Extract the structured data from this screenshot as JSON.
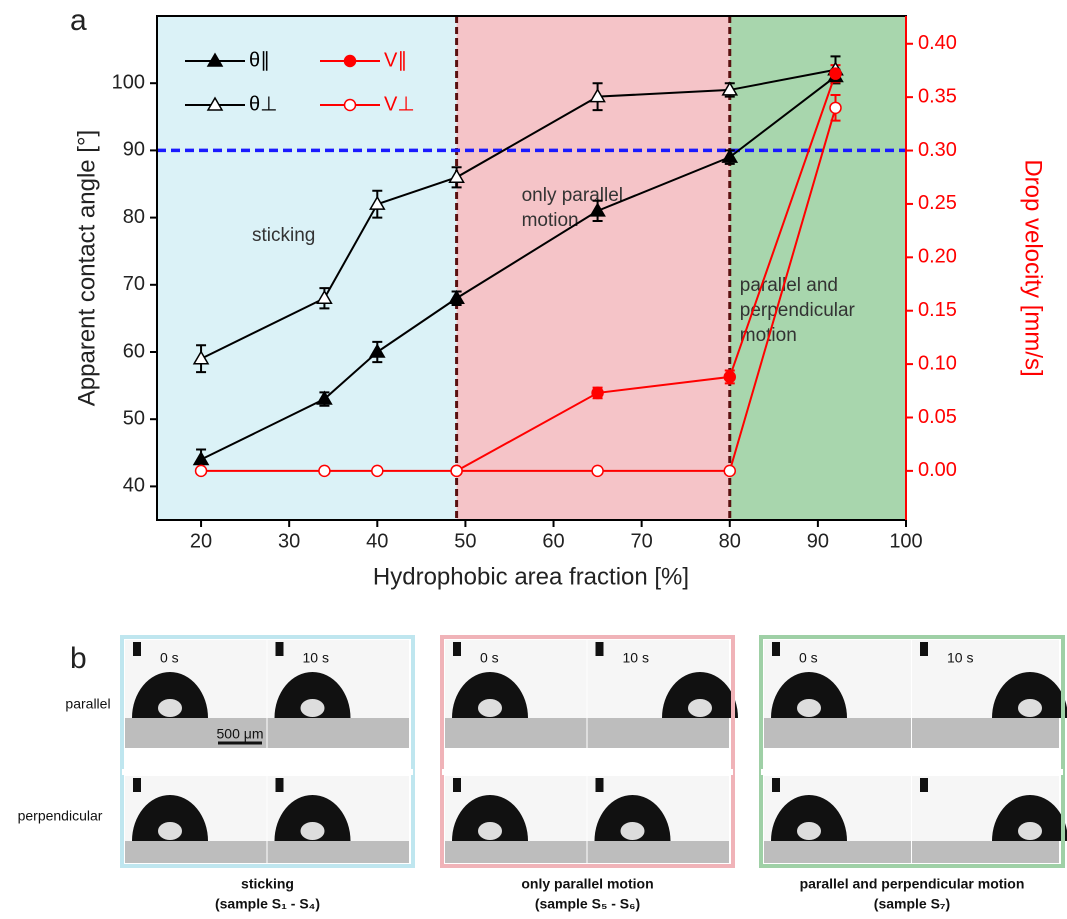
{
  "chart_data": {
    "type": "line",
    "panel": "a",
    "x_label": "Hydrophobic area fraction [%]",
    "y_label": "Apparent contact angle [°]",
    "y2_label": "Drop velocity [mm/s]",
    "xlim": [
      15,
      100
    ],
    "xticks": [
      20,
      30,
      40,
      50,
      60,
      70,
      80,
      90,
      100
    ],
    "ylim": [
      35,
      110
    ],
    "yticks": [
      40,
      50,
      60,
      70,
      80,
      90,
      100
    ],
    "y2lim": [
      -0.046,
      0.426
    ],
    "y2ticks": [
      {
        "value": 0,
        "label": "0.00"
      },
      {
        "value": 0.05,
        "label": "0.05"
      },
      {
        "value": 0.1,
        "label": "0.10"
      },
      {
        "value": 0.15,
        "label": "0.15"
      },
      {
        "value": 0.2,
        "label": "0.20"
      },
      {
        "value": 0.25,
        "label": "0.25"
      },
      {
        "value": 0.3,
        "label": "0.30"
      },
      {
        "value": 0.35,
        "label": "0.35"
      },
      {
        "value": 0.4,
        "label": "0.40"
      }
    ],
    "y2_color": "#ff0000",
    "regions": [
      {
        "xlim": [
          15,
          49
        ],
        "color": "#dbf2f7",
        "label": [
          "sticking"
        ]
      },
      {
        "xlim": [
          49,
          80
        ],
        "color": "#f5c4c8",
        "label": [
          "only parallel",
          "motion"
        ]
      },
      {
        "xlim": [
          80,
          100
        ],
        "color": "#a8d6ad",
        "label": [
          "parallel and",
          "perpendicular",
          "motion"
        ]
      }
    ],
    "vlines": [
      49,
      80
    ],
    "vline_color": "#5a1010",
    "hline": 90,
    "hline_color": "#1a1aff",
    "legend": "upper left",
    "series": [
      {
        "name": "θ∥",
        "color": "#000000",
        "marker": "triangle",
        "filled": true,
        "x": [
          20,
          34,
          40,
          49,
          65,
          80,
          92
        ],
        "values": [
          44,
          53,
          60,
          68,
          81,
          89,
          101
        ],
        "errors": [
          1.5,
          1,
          1.5,
          1,
          1.5,
          1,
          1
        ]
      },
      {
        "name": "θ⊥",
        "color": "#000000",
        "marker": "triangle",
        "filled": false,
        "x": [
          20,
          34,
          40,
          49,
          65,
          80,
          92
        ],
        "values": [
          59,
          68,
          82,
          86,
          98,
          99,
          102
        ],
        "errors": [
          2,
          1.5,
          2,
          1.5,
          2,
          1,
          2
        ]
      },
      {
        "name": "V∥",
        "color": "#ff0000",
        "marker": "circle",
        "filled": true,
        "axis": "y2",
        "x": [
          49,
          65,
          80,
          92
        ],
        "values": [
          0,
          0.073,
          0.088,
          0.372
        ],
        "errors": [
          0,
          0.005,
          0.006,
          0.008
        ]
      },
      {
        "name": "V⊥",
        "color": "#ff0000",
        "marker": "circle",
        "filled": false,
        "axis": "y2",
        "x": [
          20,
          34,
          40,
          49,
          65,
          80,
          92
        ],
        "values": [
          0,
          0,
          0,
          0,
          0,
          0,
          0.34
        ],
        "errors": [
          0,
          0,
          0,
          0,
          0,
          0,
          0.012
        ]
      }
    ]
  },
  "panel_b": {
    "label": "b",
    "row_labels": [
      "parallel",
      "perpendicular"
    ],
    "scale_bar": "500 μm",
    "groups": [
      {
        "times": [
          "0 s",
          "10 s"
        ],
        "caption": [
          "sticking",
          "(sample S₁ - S₄)"
        ],
        "color": "#bfe6ef"
      },
      {
        "times": [
          "0 s",
          "10 s"
        ],
        "caption": [
          "only parallel motion",
          "(sample S₅ - S₆)"
        ],
        "color": "#f0b3b8"
      },
      {
        "times": [
          "0 s",
          "10 s"
        ],
        "caption": [
          "parallel and perpendicular motion",
          "(sample S₇)"
        ],
        "color": "#9fd0a6"
      }
    ]
  }
}
